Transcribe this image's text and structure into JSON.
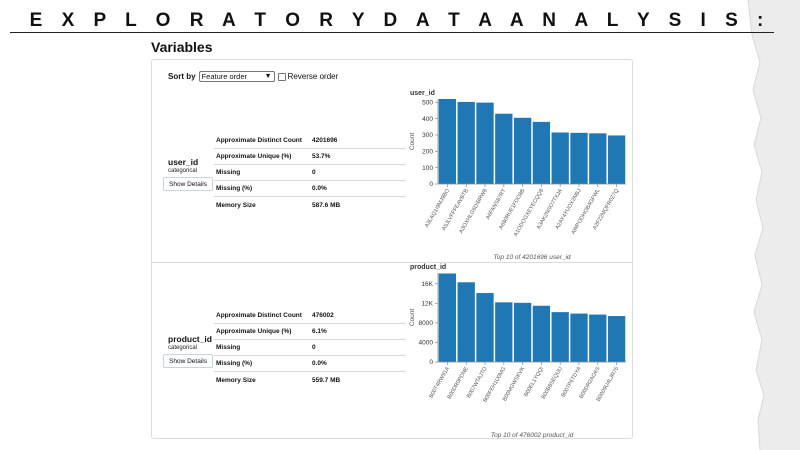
{
  "slide": {
    "title": "E X P L O R A T O R Y   D A T A   A N A L Y S I S   :",
    "section": "Variables"
  },
  "controls": {
    "sort_label": "Sort by",
    "sort_value": "Feature order",
    "reverse_label": "Reverse order",
    "reverse_checked": false
  },
  "variables": [
    {
      "name": "user_id",
      "type": "categorical",
      "details_button": "Show Details",
      "stats": [
        {
          "key": "Approximate Distinct Count",
          "value": "4201696"
        },
        {
          "key": "Approximate Unique (%)",
          "value": "53.7%"
        },
        {
          "key": "Missing",
          "value": "0"
        },
        {
          "key": "Missing (%)",
          "value": "0.0%"
        },
        {
          "key": "Memory Size",
          "value": "587.6 MB"
        }
      ]
    },
    {
      "name": "product_id",
      "type": "categorical",
      "details_button": "Show Details",
      "stats": [
        {
          "key": "Approximate Distinct Count",
          "value": "476002"
        },
        {
          "key": "Approximate Unique (%)",
          "value": "6.1%"
        },
        {
          "key": "Missing",
          "value": "0"
        },
        {
          "key": "Missing (%)",
          "value": "0.0%"
        },
        {
          "key": "Memory Size",
          "value": "559.7 MB"
        }
      ]
    }
  ],
  "chart_data": [
    {
      "type": "bar",
      "title": "user_id",
      "xlabel": "Top 10 of 4201696 user_id",
      "ylabel": "Count",
      "ylim": [
        0,
        520
      ],
      "yticks": [
        0,
        100,
        200,
        300,
        400,
        500
      ],
      "ytick_labels": [
        "0",
        "100",
        "200",
        "300",
        "400",
        "500"
      ],
      "categories": [
        "A3LAQ1I9MJ9BO",
        "A5JLVFFFEAVBTB",
        "A3OXHLG6DIBRW8",
        "A6FANS87RT",
        "A680RUE1FDO8B",
        "A1ODOGXEYECQQ8",
        "A3AK2NSO7TXJA",
        "A2AY4YUOX2NBJ",
        "AWPODHOB4GFWL",
        "A2F22MQFR0Z7Q"
      ],
      "values": [
        520,
        502,
        498,
        430,
        405,
        380,
        315,
        313,
        310,
        297
      ],
      "color": "#1f77b4"
    },
    {
      "type": "bar",
      "title": "product_id",
      "xlabel": "Top 10 of 476002 product_id",
      "ylabel": "Count",
      "ylim": [
        0,
        18200
      ],
      "yticks": [
        0,
        4000,
        8000,
        12000,
        16000
      ],
      "ytick_labels": [
        "0",
        "4000",
        "8000",
        "12K",
        "16K"
      ],
      "categories": [
        "B00T4RW91A",
        "B00DR0PDNE",
        "B007WTAJTO",
        "B00FEH1U0MG",
        "B00MGWSKVK",
        "B00EL1YQQI",
        "B00B8SEQUU",
        "B007P6TDYA",
        "B00DR2AG6S",
        "B0009U4LJR76"
      ],
      "values": [
        18100,
        16300,
        14100,
        12200,
        12100,
        11500,
        10200,
        9900,
        9700,
        9400
      ],
      "color": "#1f77b4"
    }
  ]
}
